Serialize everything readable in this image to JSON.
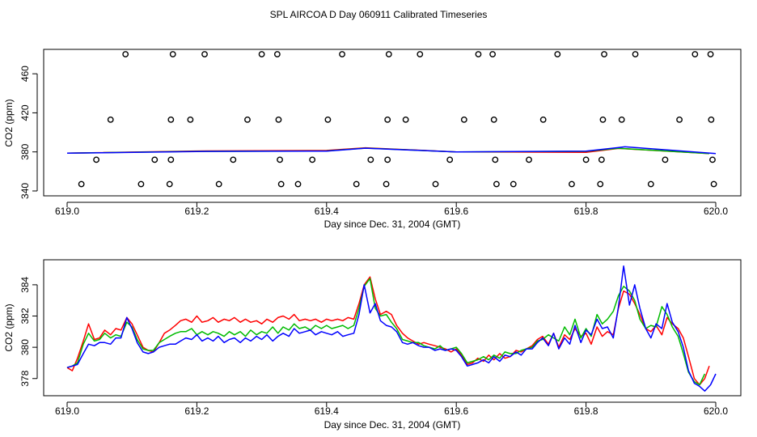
{
  "title": "SPL AIRCOA D  Day 060911  Calibrated Timeseries",
  "chart_data": [
    {
      "type": "scatter+line",
      "xlabel": "Day since Dec. 31, 2004 (GMT)",
      "ylabel": "CO2 (ppm)",
      "xlim": [
        619.0,
        620.0
      ],
      "ylim": [
        335,
        485
      ],
      "xticks": [
        "619.0",
        "619.2",
        "619.4",
        "619.6",
        "619.8",
        "620.0"
      ],
      "xtick_values": [
        619.0,
        619.2,
        619.4,
        619.6,
        619.8,
        620.0
      ],
      "yticks": [
        "340",
        "380",
        "420",
        "460"
      ],
      "ytick_values": [
        340,
        380,
        420,
        460
      ],
      "calibration_points": {
        "level_480": [
          619.09,
          619.163,
          619.212,
          619.3,
          619.324,
          619.424,
          619.496,
          619.544,
          619.634,
          619.656,
          619.756,
          619.828,
          619.876,
          619.968,
          619.992
        ],
        "level_413": [
          619.067,
          619.16,
          619.19,
          619.278,
          619.326,
          619.402,
          619.494,
          619.522,
          619.612,
          619.658,
          619.734,
          619.826,
          619.855,
          619.944,
          619.993
        ],
        "level_372": [
          619.045,
          619.135,
          619.16,
          619.256,
          619.328,
          619.378,
          619.468,
          619.494,
          619.59,
          619.66,
          619.712,
          619.8,
          619.824,
          619.922,
          619.995
        ],
        "level_347": [
          619.022,
          619.114,
          619.158,
          619.234,
          619.33,
          619.356,
          619.446,
          619.492,
          619.568,
          619.662,
          619.688,
          619.778,
          619.822,
          619.9,
          619.997
        ]
      },
      "series": [
        {
          "name": "red",
          "color": "#ff0000",
          "x": [
            619.0,
            619.2,
            619.4,
            619.46,
            619.6,
            619.8,
            619.85,
            619.99
          ],
          "values": [
            378.7,
            380.9,
            381.5,
            384.2,
            380.0,
            379.6,
            383.6,
            378.3
          ]
        },
        {
          "name": "green",
          "color": "#00bb00",
          "x": [
            619.0,
            619.2,
            619.4,
            619.46,
            619.6,
            619.8,
            619.85,
            619.99
          ],
          "values": [
            378.7,
            380.6,
            381.0,
            383.9,
            380.0,
            380.6,
            383.7,
            378.3
          ]
        },
        {
          "name": "blue",
          "color": "#0000ff",
          "x": [
            619.0,
            619.2,
            619.4,
            619.46,
            619.6,
            619.8,
            619.86,
            620.0
          ],
          "values": [
            378.7,
            380.4,
            380.8,
            383.8,
            380.0,
            380.8,
            385.2,
            378.3
          ]
        }
      ]
    },
    {
      "type": "line",
      "xlabel": "Day since Dec. 31, 2004 (GMT)",
      "ylabel": "CO2 (ppm)",
      "xlim": [
        619.0,
        620.0
      ],
      "ylim": [
        376.9,
        385.6
      ],
      "xticks": [
        "619.0",
        "619.2",
        "619.4",
        "619.6",
        "619.8",
        "620.0"
      ],
      "xtick_values": [
        619.0,
        619.2,
        619.4,
        619.6,
        619.8,
        620.0
      ],
      "yticks": [
        "378",
        "380",
        "382",
        "384"
      ],
      "ytick_values": [
        378,
        380,
        382,
        384
      ],
      "series": [
        {
          "name": "red",
          "color": "#ff0000",
          "x": [
            619.0,
            619.008,
            619.016,
            619.025,
            619.033,
            619.042,
            619.05,
            619.058,
            619.067,
            619.075,
            619.083,
            619.092,
            619.1,
            619.108,
            619.117,
            619.125,
            619.133,
            619.142,
            619.15,
            619.158,
            619.167,
            619.175,
            619.183,
            619.192,
            619.2,
            619.208,
            619.217,
            619.225,
            619.233,
            619.242,
            619.25,
            619.258,
            619.267,
            619.275,
            619.283,
            619.292,
            619.3,
            619.308,
            619.317,
            619.325,
            619.333,
            619.342,
            619.35,
            619.358,
            619.367,
            619.375,
            619.383,
            619.392,
            619.4,
            619.408,
            619.417,
            619.425,
            619.433,
            619.442,
            619.45,
            619.458,
            619.467,
            619.475,
            619.483,
            619.492,
            619.5,
            619.508,
            619.517,
            619.525,
            619.533,
            619.542,
            619.55,
            619.558,
            619.567,
            619.575,
            619.583,
            619.592,
            619.6,
            619.608,
            619.617,
            619.625,
            619.633,
            619.642,
            619.65,
            619.658,
            619.667,
            619.675,
            619.683,
            619.692,
            619.7,
            619.708,
            619.717,
            619.725,
            619.733,
            619.742,
            619.75,
            619.758,
            619.767,
            619.775,
            619.783,
            619.792,
            619.8,
            619.808,
            619.817,
            619.825,
            619.833,
            619.842,
            619.85,
            619.858,
            619.867,
            619.875,
            619.883,
            619.892,
            619.9,
            619.908,
            619.917,
            619.925,
            619.933,
            619.942,
            619.95,
            619.958,
            619.967,
            619.975,
            619.983,
            619.99
          ],
          "values": [
            378.7,
            378.5,
            379.3,
            380.4,
            381.5,
            380.5,
            380.6,
            381.1,
            380.8,
            381.2,
            381.1,
            381.9,
            381.5,
            380.8,
            380.0,
            379.8,
            379.7,
            380.3,
            380.9,
            381.1,
            381.4,
            381.7,
            381.8,
            381.6,
            382.0,
            381.6,
            381.7,
            381.9,
            381.6,
            381.8,
            381.7,
            381.9,
            381.6,
            381.8,
            381.6,
            381.7,
            381.5,
            381.8,
            381.6,
            381.9,
            382.0,
            381.8,
            382.1,
            381.7,
            381.8,
            381.7,
            381.8,
            381.6,
            381.8,
            381.7,
            381.8,
            381.7,
            381.9,
            381.8,
            382.8,
            384.0,
            384.5,
            383.1,
            382.1,
            382.3,
            382.1,
            381.4,
            380.9,
            380.6,
            380.4,
            380.2,
            380.3,
            380.2,
            380.1,
            380.0,
            379.9,
            379.7,
            379.9,
            379.5,
            378.9,
            379.0,
            379.3,
            379.1,
            379.5,
            379.2,
            379.6,
            379.3,
            379.4,
            379.8,
            379.7,
            379.9,
            380.1,
            380.5,
            380.7,
            380.2,
            380.9,
            380.0,
            380.8,
            380.5,
            381.2,
            380.7,
            380.9,
            380.2,
            381.3,
            380.7,
            381.0,
            380.8,
            382.5,
            383.6,
            383.4,
            382.8,
            382.1,
            381.2,
            381.0,
            381.4,
            380.8,
            381.9,
            381.5,
            381.2,
            380.6,
            379.4,
            378.0,
            377.6,
            378.0,
            378.8
          ]
        },
        {
          "name": "green",
          "color": "#00bb00",
          "x": [
            619.0,
            619.008,
            619.016,
            619.025,
            619.033,
            619.042,
            619.05,
            619.058,
            619.067,
            619.075,
            619.083,
            619.092,
            619.1,
            619.108,
            619.117,
            619.125,
            619.133,
            619.142,
            619.15,
            619.158,
            619.167,
            619.175,
            619.183,
            619.192,
            619.2,
            619.208,
            619.217,
            619.225,
            619.233,
            619.242,
            619.25,
            619.258,
            619.267,
            619.275,
            619.283,
            619.292,
            619.3,
            619.308,
            619.317,
            619.325,
            619.333,
            619.342,
            619.35,
            619.358,
            619.367,
            619.375,
            619.383,
            619.392,
            619.4,
            619.408,
            619.417,
            619.425,
            619.433,
            619.442,
            619.45,
            619.458,
            619.467,
            619.475,
            619.483,
            619.492,
            619.5,
            619.508,
            619.517,
            619.525,
            619.533,
            619.542,
            619.55,
            619.558,
            619.567,
            619.575,
            619.583,
            619.592,
            619.6,
            619.608,
            619.617,
            619.625,
            619.633,
            619.642,
            619.65,
            619.658,
            619.667,
            619.675,
            619.683,
            619.692,
            619.7,
            619.708,
            619.717,
            619.725,
            619.733,
            619.742,
            619.75,
            619.758,
            619.767,
            619.775,
            619.783,
            619.792,
            619.8,
            619.808,
            619.817,
            619.825,
            619.833,
            619.842,
            619.85,
            619.858,
            619.867,
            619.875,
            619.883,
            619.892,
            619.9,
            619.908,
            619.917,
            619.925,
            619.933,
            619.942,
            619.95,
            619.958,
            619.967,
            619.975,
            619.983
          ],
          "values": [
            378.7,
            378.8,
            379.0,
            380.2,
            380.9,
            380.4,
            380.5,
            380.9,
            380.6,
            380.8,
            380.7,
            381.6,
            381.3,
            380.5,
            379.9,
            379.8,
            379.8,
            380.3,
            380.5,
            380.7,
            380.9,
            381.0,
            381.0,
            381.2,
            380.8,
            381.0,
            380.8,
            381.0,
            380.9,
            380.7,
            381.0,
            380.8,
            381.0,
            380.7,
            381.1,
            380.8,
            381.0,
            380.9,
            381.3,
            380.9,
            381.3,
            381.1,
            381.5,
            381.2,
            381.3,
            381.1,
            381.4,
            381.2,
            381.4,
            381.2,
            381.3,
            381.4,
            381.2,
            381.4,
            382.5,
            383.9,
            384.4,
            382.5,
            382.0,
            382.1,
            381.6,
            381.2,
            380.5,
            380.4,
            380.3,
            380.3,
            380.1,
            380.0,
            379.9,
            380.1,
            379.8,
            379.9,
            380.0,
            379.6,
            379.0,
            379.1,
            379.2,
            379.4,
            379.2,
            379.5,
            379.3,
            379.7,
            379.6,
            379.6,
            379.8,
            379.9,
            380.0,
            380.4,
            380.5,
            380.8,
            380.6,
            380.4,
            381.3,
            380.8,
            381.8,
            380.6,
            381.2,
            380.7,
            382.1,
            381.5,
            381.8,
            382.3,
            383.3,
            383.9,
            383.6,
            383.0,
            381.8,
            381.2,
            381.4,
            381.3,
            382.6,
            382.1,
            381.3,
            380.7,
            379.6,
            378.4,
            377.8,
            377.6,
            378.3
          ]
        },
        {
          "name": "blue",
          "color": "#0000ff",
          "x": [
            619.0,
            619.008,
            619.016,
            619.025,
            619.033,
            619.042,
            619.05,
            619.058,
            619.067,
            619.075,
            619.083,
            619.092,
            619.1,
            619.108,
            619.117,
            619.125,
            619.133,
            619.142,
            619.15,
            619.158,
            619.167,
            619.175,
            619.183,
            619.192,
            619.2,
            619.208,
            619.217,
            619.225,
            619.233,
            619.242,
            619.25,
            619.258,
            619.267,
            619.275,
            619.283,
            619.292,
            619.3,
            619.308,
            619.317,
            619.325,
            619.333,
            619.342,
            619.35,
            619.358,
            619.367,
            619.375,
            619.383,
            619.392,
            619.4,
            619.408,
            619.417,
            619.425,
            619.433,
            619.442,
            619.45,
            619.458,
            619.467,
            619.475,
            619.483,
            619.492,
            619.5,
            619.508,
            619.517,
            619.525,
            619.533,
            619.542,
            619.55,
            619.558,
            619.567,
            619.575,
            619.583,
            619.592,
            619.6,
            619.608,
            619.617,
            619.625,
            619.633,
            619.642,
            619.65,
            619.658,
            619.667,
            619.675,
            619.683,
            619.692,
            619.7,
            619.708,
            619.717,
            619.725,
            619.733,
            619.742,
            619.75,
            619.758,
            619.767,
            619.775,
            619.783,
            619.792,
            619.8,
            619.808,
            619.817,
            619.825,
            619.833,
            619.842,
            619.85,
            619.858,
            619.867,
            619.875,
            619.883,
            619.892,
            619.9,
            619.908,
            619.917,
            619.925,
            619.933,
            619.942,
            619.95,
            619.958,
            619.967,
            619.975,
            619.983,
            619.992,
            620.0
          ],
          "values": [
            378.7,
            378.8,
            378.9,
            379.6,
            380.2,
            380.1,
            380.3,
            380.3,
            380.2,
            380.6,
            380.6,
            381.9,
            381.2,
            380.3,
            379.7,
            379.6,
            379.7,
            380.0,
            380.1,
            380.2,
            380.2,
            380.4,
            380.6,
            380.5,
            380.8,
            380.4,
            380.6,
            380.4,
            380.7,
            380.3,
            380.5,
            380.6,
            380.3,
            380.6,
            380.4,
            380.7,
            380.5,
            380.8,
            380.4,
            380.7,
            380.9,
            380.7,
            381.2,
            380.9,
            381.0,
            381.1,
            380.8,
            381.0,
            380.9,
            380.8,
            381.0,
            380.7,
            380.8,
            380.9,
            382.1,
            384.0,
            382.2,
            382.8,
            381.7,
            381.4,
            381.3,
            381.0,
            380.3,
            380.2,
            380.3,
            380.1,
            380.0,
            380.0,
            379.8,
            379.9,
            379.8,
            379.9,
            379.8,
            379.4,
            378.8,
            378.9,
            379.0,
            379.2,
            379.0,
            379.4,
            379.1,
            379.5,
            379.4,
            379.7,
            379.5,
            379.9,
            379.9,
            380.3,
            380.6,
            380.1,
            380.9,
            379.9,
            380.6,
            380.2,
            381.4,
            380.3,
            381.1,
            380.8,
            381.8,
            381.2,
            381.3,
            380.6,
            382.6,
            385.2,
            382.7,
            384.0,
            382.5,
            381.2,
            380.6,
            381.5,
            381.2,
            382.8,
            381.6,
            381.0,
            380.0,
            378.5,
            377.7,
            377.5,
            377.2,
            377.6,
            378.3
          ]
        }
      ]
    }
  ]
}
